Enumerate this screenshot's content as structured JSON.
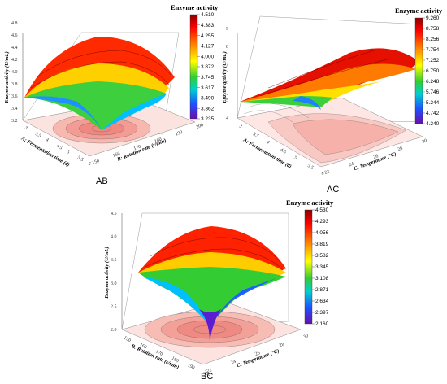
{
  "chart_data": [
    {
      "type": "surface3d",
      "panel_label": "AB",
      "colorbar_title": "Enzyme activity",
      "colorbar_ticks": [
        "4.510",
        "4.383",
        "4.255",
        "4.127",
        "4.000",
        "3.872",
        "3.745",
        "3.617",
        "3.490",
        "3.362",
        "3.235"
      ],
      "zlabel": "Enzyme activity (U/mL)",
      "xlabel": "A: Fermentation time (d)",
      "ylabel": "B: Rotation rate (r/min)",
      "z_ticks": [
        "3.2",
        "3.4",
        "3.6",
        "3.8",
        "4.0",
        "4.2",
        "4.4",
        "4.6",
        "4.8"
      ],
      "x_ticks": [
        "3",
        "3.5",
        "4",
        "4.5",
        "5",
        "5.5",
        "6"
      ],
      "y_ticks": [
        "150",
        "160",
        "170",
        "180",
        "190",
        "200"
      ],
      "zlim": [
        3.235,
        4.51
      ]
    },
    {
      "type": "surface3d",
      "panel_label": "AC",
      "colorbar_title": "Enzyme activity",
      "colorbar_ticks": [
        "9.260",
        "8.758",
        "8.256",
        "7.754",
        "7.252",
        "6.750",
        "6.248",
        "5.746",
        "5.244",
        "4.742",
        "4.240"
      ],
      "zlabel": "Enzyme activity (U/mL)",
      "xlabel": "A: Fermentation time (d)",
      "ylabel": "C: Temperature (°C)",
      "z_ticks": [
        "4",
        "5",
        "6",
        "7",
        "8",
        "9"
      ],
      "x_ticks": [
        "3",
        "3.5",
        "4",
        "4.5",
        "5",
        "5.5",
        "6"
      ],
      "y_ticks": [
        "22",
        "24",
        "26",
        "28",
        "30"
      ],
      "zlim": [
        4.24,
        9.26
      ]
    },
    {
      "type": "surface3d",
      "panel_label": "BC",
      "colorbar_title": "Enzyme activity",
      "colorbar_ticks": [
        "4.530",
        "4.293",
        "4.056",
        "3.819",
        "3.582",
        "3.345",
        "3.108",
        "2.871",
        "2.634",
        "2.397",
        "2.160"
      ],
      "zlabel": "Enzyme activity (U/mL)",
      "xlabel": "B: Rotation rate (r/min)",
      "ylabel": "C: Temperature (°C)",
      "z_ticks": [
        "2.0",
        "2.5",
        "3.0",
        "3.5",
        "4.0",
        "4.5"
      ],
      "x_ticks": [
        "150",
        "160",
        "170",
        "180",
        "190",
        "200"
      ],
      "y_ticks": [
        "22",
        "24",
        "26",
        "28",
        "30"
      ],
      "zlim": [
        2.16,
        4.53
      ]
    }
  ]
}
